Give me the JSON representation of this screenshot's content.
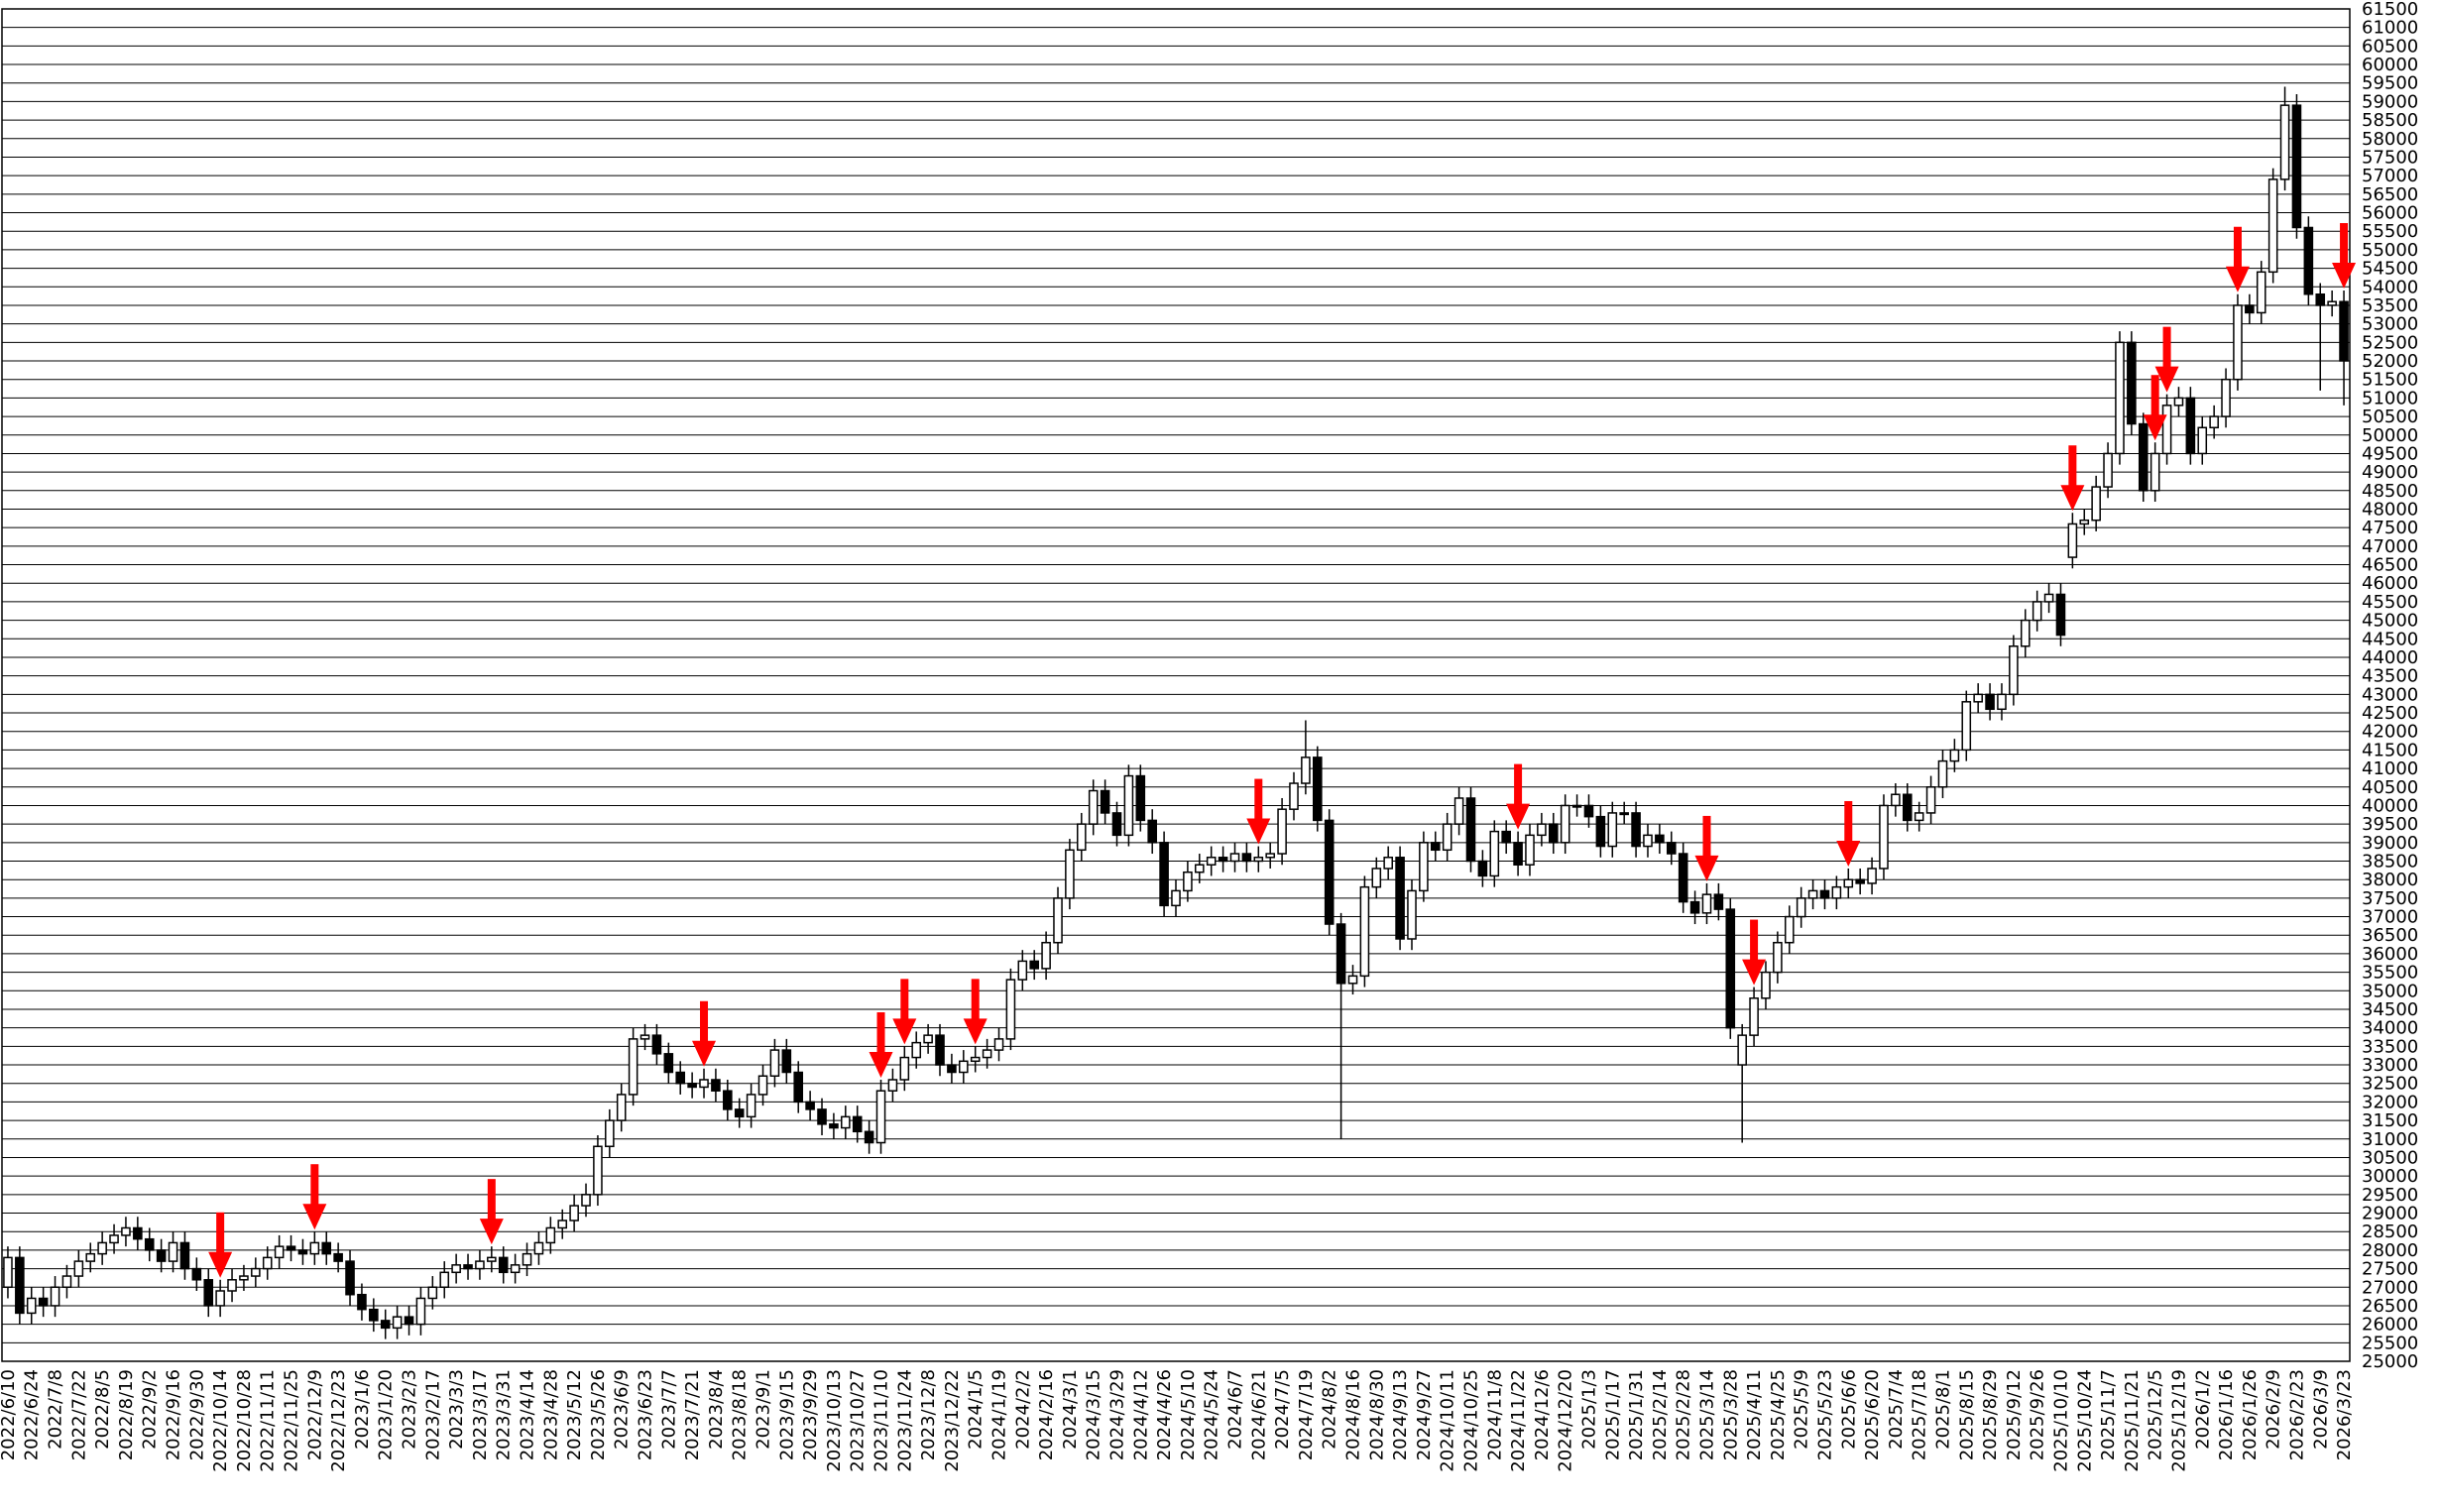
{
  "chart_data": {
    "type": "candlestick",
    "categories": [
      "2022/6/10",
      null,
      "2022/6/24",
      null,
      "2022/7/8",
      null,
      "2022/7/22",
      null,
      "2022/8/5",
      null,
      "2022/8/19",
      null,
      "2022/9/2",
      null,
      "2022/9/16",
      null,
      "2022/9/30",
      null,
      "2022/10/14",
      null,
      "2022/10/28",
      null,
      "2022/11/11",
      null,
      "2022/11/25",
      null,
      "2022/12/9",
      null,
      "2022/12/23",
      null,
      "2023/1/6",
      null,
      "2023/1/20",
      null,
      "2023/2/3",
      null,
      "2023/2/17",
      null,
      "2023/3/3",
      null,
      "2023/3/17",
      null,
      "2023/3/31",
      null,
      "2023/4/14",
      null,
      "2023/4/28",
      null,
      "2023/5/12",
      null,
      "2023/5/26",
      null,
      "2023/6/9",
      null,
      "2023/6/23",
      null,
      "2023/7/7",
      null,
      "2023/7/21",
      null,
      "2023/8/4",
      null,
      "2023/8/18",
      null,
      "2023/9/1",
      null,
      "2023/9/15",
      null,
      "2023/9/29",
      null,
      "2023/10/13",
      null,
      "2023/10/27",
      null,
      "2023/11/10",
      null,
      "2023/11/24",
      null,
      "2023/12/8",
      null,
      "2023/12/22",
      null,
      "2024/1/5",
      null,
      "2024/1/19",
      null,
      "2024/2/2",
      null,
      "2024/2/16",
      null,
      "2024/3/1",
      null,
      "2024/3/15",
      null,
      "2024/3/29",
      null,
      "2024/4/12",
      null,
      "2024/4/26",
      null,
      "2024/5/10",
      null,
      "2024/5/24",
      null,
      "2024/6/7",
      null,
      "2024/6/21",
      null,
      "2024/7/5",
      null,
      "2024/7/19",
      null,
      "2024/8/2",
      null,
      "2024/8/16",
      null,
      "2024/8/30",
      null,
      "2024/9/13",
      null,
      "2024/9/27",
      null,
      "2024/10/11",
      null,
      "2024/10/25",
      null,
      "2024/11/8",
      null,
      "2024/11/22",
      null,
      "2024/12/6",
      null,
      "2024/12/20",
      null,
      "2025/1/3",
      null,
      "2025/1/17",
      null,
      "2025/1/31",
      null,
      "2025/2/14",
      null,
      "2025/2/28",
      null,
      "2025/3/14",
      null,
      "2025/3/28",
      null,
      "2025/4/11",
      null,
      "2025/4/25",
      null,
      "2025/5/9",
      null,
      "2025/5/23",
      null,
      "2025/6/6",
      null,
      "2025/6/20",
      null,
      "2025/7/4",
      null,
      "2025/7/18",
      null,
      "2025/8/1",
      null,
      "2025/8/15",
      null,
      "2025/8/29",
      null,
      "2025/9/12",
      null,
      "2025/9/26",
      null,
      "2025/10/10",
      null,
      "2025/10/24",
      null,
      "2025/11/7",
      null,
      "2025/11/21",
      null,
      "2025/12/5",
      null,
      "2025/12/19",
      null,
      "2026/1/2",
      null,
      "2026/1/16",
      null,
      "2026/1/26",
      null,
      "2026/2/9",
      null,
      "2026/2/23",
      null,
      "2026/3/9",
      null,
      "2026/3/23"
    ],
    "open": [
      27000,
      27800,
      26300,
      26700,
      26500,
      27000,
      27300,
      27700,
      27900,
      28200,
      28400,
      28600,
      28300,
      28000,
      27700,
      28200,
      27500,
      27200,
      26500,
      26900,
      27200,
      27300,
      27500,
      27800,
      28100,
      28000,
      27900,
      28200,
      27900,
      27700,
      26800,
      26400,
      26100,
      25900,
      26200,
      26000,
      26700,
      27000,
      27400,
      27600,
      27500,
      27700,
      27800,
      27400,
      27600,
      27900,
      28200,
      28600,
      28800,
      29200,
      29500,
      30800,
      31500,
      32200,
      33700,
      33800,
      33300,
      32800,
      32500,
      32400,
      32600,
      32300,
      31800,
      31600,
      32200,
      32700,
      33400,
      32800,
      32000,
      31800,
      31400,
      31300,
      31600,
      31200,
      30900,
      32300,
      32600,
      33200,
      33600,
      33800,
      33000,
      32800,
      33100,
      33200,
      33400,
      33700,
      35300,
      35800,
      35600,
      36300,
      37500,
      38800,
      39500,
      40400,
      39800,
      39200,
      40800,
      39600,
      39000,
      37300,
      37700,
      38200,
      38400,
      38600,
      38500,
      38700,
      38500,
      38600,
      38700,
      39900,
      40600,
      41300,
      39600,
      36800,
      35200,
      35400,
      37800,
      38300,
      38600,
      36400,
      37700,
      39000,
      38800,
      39500,
      40200,
      38500,
      38100,
      39300,
      39000,
      38400,
      39200,
      39500,
      39000,
      40000,
      40000,
      39700,
      38900,
      39800,
      39800,
      38900,
      39200,
      39000,
      38700,
      37400,
      37100,
      37600,
      37200,
      33000,
      33800,
      34800,
      35500,
      36300,
      37000,
      37500,
      37700,
      37500,
      37800,
      38000,
      37900,
      38300,
      40000,
      40300,
      39600,
      39800,
      40500,
      41200,
      41500,
      42800,
      43000,
      42600,
      43000,
      44300,
      45000,
      45500,
      45700,
      46700,
      47600,
      47700,
      48600,
      49500,
      52500,
      50300,
      48500,
      49500,
      50800,
      51000,
      49500,
      50200,
      50500,
      51500,
      53500,
      53300,
      54400,
      56900,
      58900,
      55600,
      53800,
      53500,
      53600
    ],
    "high": [
      28100,
      28100,
      27000,
      27000,
      27300,
      27600,
      28000,
      28200,
      28500,
      28700,
      28900,
      28900,
      28600,
      28300,
      28500,
      28500,
      27800,
      27500,
      27200,
      27500,
      27600,
      27800,
      28100,
      28400,
      28400,
      28300,
      28500,
      28500,
      28200,
      28000,
      27100,
      26700,
      26400,
      26500,
      26500,
      27000,
      27300,
      27700,
      27900,
      27900,
      28000,
      28100,
      28100,
      27900,
      28200,
      28500,
      28900,
      29100,
      29500,
      29800,
      31100,
      31800,
      32500,
      34000,
      34100,
      34100,
      33600,
      33100,
      32800,
      32900,
      32900,
      32600,
      32100,
      32500,
      33000,
      33700,
      33700,
      33100,
      32300,
      32100,
      31700,
      31900,
      31900,
      31500,
      32600,
      32900,
      33500,
      33900,
      34100,
      34100,
      33300,
      33400,
      33500,
      33700,
      34000,
      35600,
      36100,
      36100,
      36600,
      37800,
      39100,
      39800,
      40700,
      40700,
      40100,
      41100,
      41100,
      39900,
      39300,
      38000,
      38500,
      38700,
      38900,
      38900,
      39000,
      39000,
      38900,
      39000,
      40200,
      40900,
      42300,
      41600,
      39900,
      37100,
      35700,
      38100,
      38600,
      38900,
      38900,
      38000,
      39300,
      39300,
      39800,
      40500,
      40500,
      38800,
      39600,
      39600,
      39300,
      39500,
      39800,
      39800,
      40300,
      40300,
      40300,
      40000,
      40100,
      40100,
      40100,
      39500,
      39500,
      39300,
      39000,
      37700,
      37900,
      37900,
      37500,
      34100,
      35100,
      35800,
      36600,
      37300,
      37800,
      38000,
      38000,
      38100,
      38300,
      38300,
      38600,
      40300,
      40600,
      40600,
      40100,
      40800,
      41500,
      41800,
      43100,
      43300,
      43300,
      43300,
      44600,
      45300,
      45800,
      46000,
      46000,
      47900,
      48000,
      48900,
      49800,
      52800,
      52800,
      50600,
      49800,
      51100,
      51300,
      51300,
      50500,
      50800,
      51800,
      53800,
      53800,
      54700,
      57200,
      59400,
      59200,
      55900,
      54100,
      53900,
      53900
    ],
    "low": [
      26700,
      26000,
      26000,
      26200,
      26200,
      26700,
      27000,
      27400,
      27600,
      27900,
      28100,
      28000,
      27700,
      27400,
      27400,
      27200,
      26900,
      26200,
      26200,
      26600,
      26900,
      27000,
      27200,
      27500,
      27700,
      27600,
      27600,
      27600,
      27400,
      26500,
      26100,
      25800,
      25600,
      25600,
      25700,
      25700,
      26400,
      26700,
      27100,
      27200,
      27200,
      27400,
      27100,
      27100,
      27300,
      27600,
      27900,
      28300,
      28500,
      28900,
      29200,
      30500,
      31200,
      31900,
      33400,
      33000,
      32500,
      32200,
      32100,
      32100,
      32000,
      31500,
      31300,
      31300,
      31900,
      32400,
      32500,
      31700,
      31500,
      31100,
      31000,
      31000,
      30900,
      30600,
      30600,
      32000,
      32300,
      32900,
      33300,
      32700,
      32500,
      32500,
      32800,
      32900,
      33100,
      33400,
      35000,
      35300,
      35300,
      36000,
      37200,
      38500,
      39200,
      39500,
      38900,
      38900,
      39300,
      38700,
      37000,
      37000,
      37400,
      37900,
      38100,
      38200,
      38200,
      38200,
      38200,
      38300,
      38400,
      39600,
      40300,
      39300,
      36500,
      31000,
      34900,
      35100,
      37500,
      38000,
      36100,
      36100,
      37400,
      38500,
      38500,
      39200,
      38200,
      37800,
      37800,
      38700,
      38100,
      38100,
      38900,
      38700,
      38700,
      39700,
      39400,
      38600,
      38600,
      39500,
      38600,
      38600,
      38700,
      38400,
      37100,
      36800,
      36800,
      36900,
      33700,
      30900,
      33500,
      34500,
      35200,
      36000,
      36700,
      37200,
      37200,
      37200,
      37500,
      37600,
      37600,
      38000,
      39700,
      39300,
      39300,
      39500,
      40200,
      40900,
      41200,
      42500,
      42300,
      42300,
      42700,
      44000,
      44700,
      45200,
      44300,
      46400,
      47300,
      47400,
      48300,
      49200,
      50000,
      48200,
      48200,
      49200,
      50500,
      49200,
      49200,
      49900,
      50200,
      51200,
      53000,
      53000,
      54100,
      56600,
      55300,
      53500,
      51200,
      53200,
      50800
    ],
    "close": [
      27800,
      26300,
      26700,
      26500,
      27000,
      27300,
      27700,
      27900,
      28200,
      28400,
      28600,
      28300,
      28000,
      27700,
      28200,
      27500,
      27200,
      26500,
      26900,
      27200,
      27300,
      27500,
      27800,
      28100,
      28000,
      27900,
      28200,
      27900,
      27700,
      26800,
      26400,
      26100,
      25900,
      26200,
      26000,
      26700,
      27000,
      27400,
      27600,
      27500,
      27700,
      27800,
      27400,
      27600,
      27900,
      28200,
      28600,
      28800,
      29200,
      29500,
      30800,
      31500,
      32200,
      33700,
      33800,
      33300,
      32800,
      32500,
      32400,
      32600,
      32300,
      31800,
      31600,
      32200,
      32700,
      33400,
      32800,
      32000,
      31800,
      31400,
      31300,
      31600,
      31200,
      30900,
      32300,
      32600,
      33200,
      33600,
      33800,
      33000,
      32800,
      33100,
      33200,
      33400,
      33700,
      35300,
      35800,
      35600,
      36300,
      37500,
      38800,
      39500,
      40400,
      39800,
      39200,
      40800,
      39600,
      39000,
      37300,
      37700,
      38200,
      38400,
      38600,
      38500,
      38700,
      38500,
      38600,
      38700,
      39900,
      40600,
      41300,
      39600,
      36800,
      35200,
      35400,
      37800,
      38300,
      38600,
      36400,
      37700,
      39000,
      38800,
      39500,
      40200,
      38500,
      38100,
      39300,
      39000,
      38400,
      39200,
      39500,
      39000,
      40000,
      40000,
      39700,
      38900,
      39800,
      39800,
      38900,
      39200,
      39000,
      38700,
      37400,
      37100,
      37600,
      37200,
      34000,
      33800,
      34800,
      35500,
      36300,
      37000,
      37500,
      37700,
      37500,
      37800,
      38000,
      37900,
      38300,
      40000,
      40300,
      39600,
      39800,
      40500,
      41200,
      41500,
      42800,
      43000,
      42600,
      43000,
      44300,
      45000,
      45500,
      45700,
      44600,
      47600,
      47700,
      48600,
      49500,
      52500,
      50300,
      48500,
      49500,
      50800,
      51000,
      49500,
      50200,
      50500,
      51500,
      53500,
      53300,
      54400,
      56900,
      58900,
      55600,
      53800,
      53500,
      53600,
      52000
    ],
    "ylim": [
      25000,
      61500
    ],
    "yticks": [
      25000,
      25500,
      26000,
      26500,
      27000,
      27500,
      28000,
      28500,
      29000,
      29500,
      30000,
      30500,
      31000,
      31500,
      32000,
      32500,
      33000,
      33500,
      34000,
      34500,
      35000,
      35500,
      36000,
      36500,
      37000,
      37500,
      38000,
      38500,
      39000,
      39500,
      40000,
      40500,
      41000,
      41500,
      42000,
      42500,
      43000,
      43500,
      44000,
      44500,
      45000,
      45500,
      46000,
      46500,
      47000,
      47500,
      48000,
      48500,
      49000,
      49500,
      50000,
      50500,
      51000,
      51500,
      52000,
      52500,
      53000,
      53500,
      54000,
      54500,
      55000,
      55500,
      56000,
      56500,
      57000,
      57500,
      58000,
      58500,
      59000,
      59500,
      60000,
      60500,
      61000,
      61500
    ],
    "grid": true,
    "up_color": "#ffffff",
    "down_color": "#000000",
    "signal_color": "#ff0000"
  }
}
